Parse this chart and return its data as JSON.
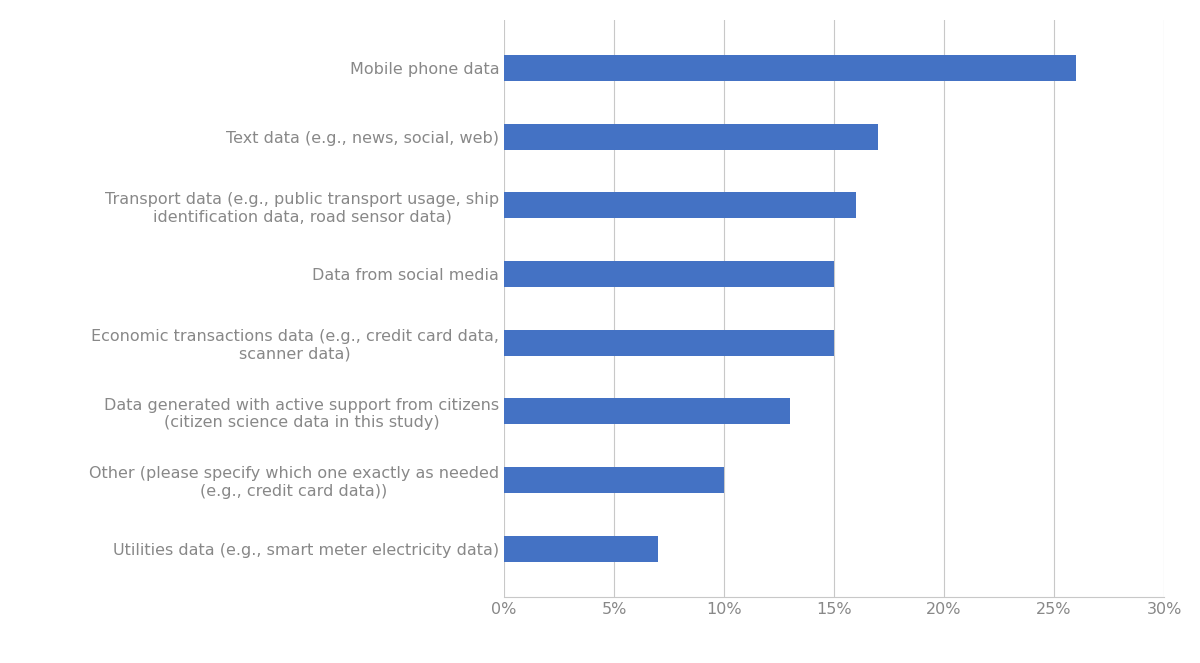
{
  "categories": [
    "Utilities data (e.g., smart meter electricity data)",
    "Other (please specify which one exactly as needed\n(e.g., credit card data))",
    "Data generated with active support from citizens\n(citizen science data in this study)",
    "Economic transactions data (e.g., credit card data,\nscanner data)",
    "Data from social media",
    "Transport data (e.g., public transport usage, ship\nidentification data, road sensor data)",
    "Text data (e.g., news, social, web)",
    "Mobile phone data"
  ],
  "values": [
    0.07,
    0.1,
    0.13,
    0.15,
    0.15,
    0.16,
    0.17,
    0.26
  ],
  "bar_color": "#4472C4",
  "background_color": "#ffffff",
  "xlim": [
    0,
    0.3
  ],
  "xticks": [
    0.0,
    0.05,
    0.1,
    0.15,
    0.2,
    0.25,
    0.3
  ],
  "xtick_labels": [
    "0%",
    "5%",
    "10%",
    "15%",
    "20%",
    "25%",
    "30%"
  ],
  "grid_color": "#c8c8c8",
  "label_color": "#888888",
  "tick_color": "#888888",
  "bar_height": 0.38,
  "label_fontsize": 11.5,
  "tick_fontsize": 11.5
}
